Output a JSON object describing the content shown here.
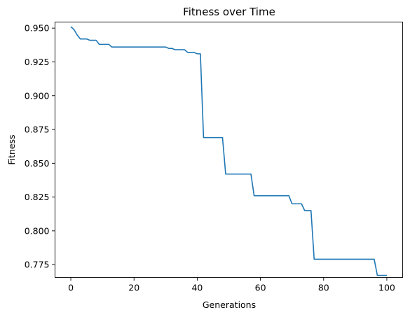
{
  "chart_data": {
    "type": "line",
    "title": "Fitness over Time",
    "xlabel": "Generations",
    "ylabel": "Fitness",
    "xlim": [
      -5,
      105
    ],
    "ylim": [
      0.7655,
      0.9545
    ],
    "xticks": [
      0,
      20,
      40,
      60,
      80,
      100
    ],
    "xtick_labels": [
      "0",
      "20",
      "40",
      "60",
      "80",
      "100"
    ],
    "yticks": [
      0.775,
      0.8,
      0.825,
      0.85,
      0.875,
      0.9,
      0.925,
      0.95
    ],
    "ytick_labels": [
      "0.775",
      "0.800",
      "0.825",
      "0.850",
      "0.875",
      "0.900",
      "0.925",
      "0.950"
    ],
    "grid": false,
    "line_color": "#1f77b4",
    "series": [
      {
        "x": [
          0,
          1,
          2,
          3,
          4,
          5,
          6,
          7,
          8,
          9,
          10,
          11,
          12,
          13,
          14,
          15,
          16,
          17,
          18,
          19,
          20,
          21,
          22,
          23,
          24,
          25,
          26,
          27,
          28,
          29,
          30,
          31,
          32,
          33,
          34,
          35,
          36,
          37,
          38,
          39,
          40,
          41,
          42,
          43,
          44,
          45,
          46,
          47,
          48,
          49,
          50,
          51,
          52,
          53,
          54,
          55,
          56,
          57,
          58,
          59,
          60,
          61,
          62,
          63,
          64,
          65,
          66,
          67,
          68,
          69,
          70,
          71,
          72,
          73,
          74,
          75,
          76,
          77,
          78,
          79,
          80,
          81,
          82,
          83,
          84,
          85,
          86,
          87,
          88,
          89,
          90,
          91,
          92,
          93,
          94,
          95,
          96,
          97,
          98,
          99,
          100
        ],
        "values": [
          0.951,
          0.949,
          0.945,
          0.942,
          0.942,
          0.942,
          0.941,
          0.941,
          0.941,
          0.938,
          0.938,
          0.938,
          0.938,
          0.936,
          0.936,
          0.936,
          0.936,
          0.936,
          0.936,
          0.936,
          0.936,
          0.936,
          0.936,
          0.936,
          0.936,
          0.936,
          0.936,
          0.936,
          0.936,
          0.936,
          0.936,
          0.935,
          0.935,
          0.934,
          0.934,
          0.934,
          0.934,
          0.932,
          0.932,
          0.932,
          0.931,
          0.931,
          0.869,
          0.869,
          0.869,
          0.869,
          0.869,
          0.869,
          0.869,
          0.842,
          0.842,
          0.842,
          0.842,
          0.842,
          0.842,
          0.842,
          0.842,
          0.842,
          0.826,
          0.826,
          0.826,
          0.826,
          0.826,
          0.826,
          0.826,
          0.826,
          0.826,
          0.826,
          0.826,
          0.826,
          0.82,
          0.82,
          0.82,
          0.82,
          0.815,
          0.815,
          0.815,
          0.779,
          0.779,
          0.779,
          0.779,
          0.779,
          0.779,
          0.779,
          0.779,
          0.779,
          0.779,
          0.779,
          0.779,
          0.779,
          0.779,
          0.779,
          0.779,
          0.779,
          0.779,
          0.779,
          0.779,
          0.767,
          0.767,
          0.767,
          0.767
        ]
      }
    ]
  }
}
